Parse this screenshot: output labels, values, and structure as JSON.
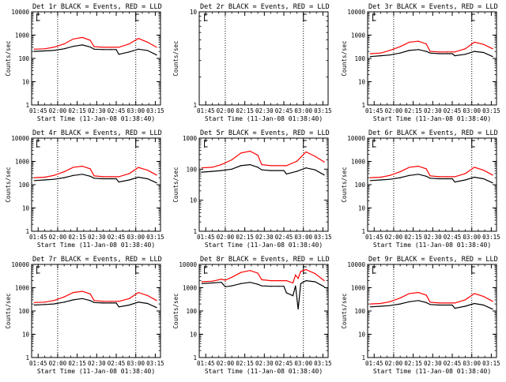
{
  "chart_data": [
    {
      "type": "line",
      "title": "Det 1r BLACK = Events, RED = LLD",
      "xlabel": "Start Time (11-Jan-08 01:38:40)",
      "ylabel": "Counts/sec",
      "ylog": true,
      "ylim": [
        1,
        10000
      ],
      "x": [
        "01:42",
        "01:50",
        "01:57",
        "02:05",
        "02:12",
        "02:19",
        "02:25",
        "02:28",
        "02:35",
        "02:41",
        "02:45",
        "02:47",
        "02:55",
        "03:02",
        "03:09",
        "03:16"
      ],
      "series": [
        {
          "color": "#000000",
          "values": [
            200,
            210,
            220,
            260,
            330,
            380,
            310,
            250,
            240,
            240,
            240,
            150,
            190,
            250,
            220,
            140
          ]
        },
        {
          "color": "#ff0000",
          "values": [
            250,
            260,
            300,
            420,
            680,
            800,
            600,
            320,
            300,
            300,
            300,
            300,
            420,
            720,
            500,
            300
          ]
        }
      ],
      "xticks": [
        "01:45",
        "02:00",
        "02:15",
        "02:30",
        "02:45",
        "03:00",
        "03:15"
      ],
      "yticks": [
        "1",
        "10",
        "100",
        "1000",
        "10000"
      ],
      "markers": [
        "02:00",
        "03:00"
      ],
      "flags": [
        "01:44",
        "03:00"
      ]
    },
    {
      "type": "line",
      "title": "Det 2r BLACK = Events, RED = LLD",
      "xlabel": "Start Time (11-Jan-08 01:38:40)",
      "ylabel": "Counts/sec",
      "ylog": true,
      "ylim": [
        1,
        10
      ],
      "x": [],
      "series": [],
      "xticks": [
        "01:45",
        "02:00",
        "02:15",
        "02:30",
        "02:45",
        "03:00",
        "03:15"
      ],
      "yticks": [
        "1",
        "10"
      ],
      "markers": [
        "02:00",
        "03:00"
      ],
      "flags": [
        "01:44",
        "03:00"
      ]
    },
    {
      "type": "line",
      "title": "Det 3r BLACK = Events, RED = LLD",
      "xlabel": "Start Time (11-Jan-08 01:38:40)",
      "ylabel": "Counts/sec",
      "ylog": true,
      "ylim": [
        1,
        10000
      ],
      "x": [
        "01:42",
        "01:50",
        "01:57",
        "02:05",
        "02:12",
        "02:19",
        "02:25",
        "02:28",
        "02:35",
        "02:41",
        "02:45",
        "02:47",
        "02:55",
        "03:02",
        "03:09",
        "03:16"
      ],
      "series": [
        {
          "color": "#000000",
          "values": [
            120,
            130,
            140,
            170,
            220,
            240,
            200,
            170,
            160,
            160,
            160,
            130,
            150,
            200,
            180,
            120
          ]
        },
        {
          "color": "#ff0000",
          "values": [
            160,
            170,
            220,
            320,
            500,
            550,
            420,
            200,
            190,
            190,
            190,
            190,
            260,
            500,
            400,
            260
          ]
        }
      ],
      "xticks": [
        "01:45",
        "02:00",
        "02:15",
        "02:30",
        "02:45",
        "03:00",
        "03:15"
      ],
      "yticks": [
        "1",
        "10",
        "100",
        "1000",
        "10000"
      ],
      "markers": [
        "02:00",
        "03:00"
      ],
      "flags": [
        "01:44",
        "03:00"
      ]
    },
    {
      "type": "line",
      "title": "Det 4r BLACK = Events, RED = LLD",
      "xlabel": "Start Time (11-Jan-08 01:38:40)",
      "ylabel": "Counts/sec",
      "ylog": true,
      "ylim": [
        1,
        10000
      ],
      "x": [
        "01:42",
        "01:50",
        "01:57",
        "02:05",
        "02:12",
        "02:19",
        "02:25",
        "02:28",
        "02:35",
        "02:41",
        "02:45",
        "02:47",
        "02:55",
        "03:02",
        "03:09",
        "03:16"
      ],
      "series": [
        {
          "color": "#000000",
          "values": [
            150,
            160,
            170,
            200,
            250,
            280,
            230,
            190,
            180,
            180,
            180,
            130,
            160,
            210,
            180,
            120
          ]
        },
        {
          "color": "#ff0000",
          "values": [
            200,
            210,
            250,
            360,
            560,
            620,
            480,
            240,
            220,
            220,
            220,
            220,
            300,
            550,
            420,
            260
          ]
        }
      ],
      "xticks": [
        "01:45",
        "02:00",
        "02:15",
        "02:30",
        "02:45",
        "03:00",
        "03:15"
      ],
      "yticks": [
        "1",
        "10",
        "100",
        "1000",
        "10000"
      ],
      "markers": [
        "02:00",
        "03:00"
      ],
      "flags": [
        "01:44",
        "03:00"
      ]
    },
    {
      "type": "line",
      "title": "Det 5r BLACK = Events, RED = LLD",
      "xlabel": "Start Time (11-Jan-08 01:38:40)",
      "ylabel": "Counts/sec",
      "ylog": true,
      "ylim": [
        1,
        1000
      ],
      "x": [
        "01:42",
        "01:50",
        "01:57",
        "02:05",
        "02:12",
        "02:19",
        "02:25",
        "02:28",
        "02:35",
        "02:41",
        "02:45",
        "02:47",
        "02:55",
        "03:02",
        "03:09",
        "03:16"
      ],
      "series": [
        {
          "color": "#000000",
          "values": [
            80,
            85,
            90,
            100,
            130,
            140,
            115,
            95,
            90,
            90,
            90,
            70,
            85,
            110,
            95,
            65
          ]
        },
        {
          "color": "#ff0000",
          "values": [
            110,
            115,
            140,
            200,
            330,
            380,
            280,
            140,
            130,
            130,
            130,
            130,
            180,
            360,
            260,
            170
          ]
        }
      ],
      "xticks": [
        "01:45",
        "02:00",
        "02:15",
        "02:30",
        "02:45",
        "03:00",
        "03:15"
      ],
      "yticks": [
        "1",
        "10",
        "100",
        "1000"
      ],
      "markers": [
        "02:00",
        "03:00"
      ],
      "flags": [
        "01:44",
        "03:00"
      ]
    },
    {
      "type": "line",
      "title": "Det 6r BLACK = Events, RED = LLD",
      "xlabel": "Start Time (11-Jan-08 01:38:40)",
      "ylabel": "Counts/sec",
      "ylog": true,
      "ylim": [
        1,
        10000
      ],
      "x": [
        "01:42",
        "01:50",
        "01:57",
        "02:05",
        "02:12",
        "02:19",
        "02:25",
        "02:28",
        "02:35",
        "02:41",
        "02:45",
        "02:47",
        "02:55",
        "03:02",
        "03:09",
        "03:16"
      ],
      "series": [
        {
          "color": "#000000",
          "values": [
            150,
            160,
            170,
            200,
            250,
            280,
            230,
            190,
            180,
            180,
            180,
            130,
            160,
            210,
            180,
            120
          ]
        },
        {
          "color": "#ff0000",
          "values": [
            200,
            210,
            250,
            360,
            560,
            620,
            480,
            240,
            220,
            220,
            220,
            220,
            300,
            560,
            420,
            260
          ]
        }
      ],
      "xticks": [
        "01:45",
        "02:00",
        "02:15",
        "02:30",
        "02:45",
        "03:00",
        "03:15"
      ],
      "yticks": [
        "1",
        "10",
        "100",
        "1000",
        "10000"
      ],
      "markers": [
        "02:00",
        "03:00"
      ],
      "flags": [
        "01:44",
        "03:00"
      ]
    },
    {
      "type": "line",
      "title": "Det 7r BLACK = Events, RED = LLD",
      "xlabel": "Start Time (11-Jan-08 01:38:40)",
      "ylabel": "Counts/sec",
      "ylog": true,
      "ylim": [
        1,
        10000
      ],
      "x": [
        "01:42",
        "01:50",
        "01:57",
        "02:05",
        "02:12",
        "02:19",
        "02:25",
        "02:28",
        "02:35",
        "02:41",
        "02:45",
        "02:47",
        "02:55",
        "03:02",
        "03:09",
        "03:16"
      ],
      "series": [
        {
          "color": "#000000",
          "values": [
            180,
            190,
            200,
            240,
            300,
            340,
            280,
            230,
            220,
            220,
            220,
            150,
            180,
            240,
            210,
            140
          ]
        },
        {
          "color": "#ff0000",
          "values": [
            230,
            240,
            280,
            400,
            620,
            700,
            540,
            280,
            260,
            260,
            260,
            260,
            340,
            620,
            460,
            280
          ]
        }
      ],
      "xticks": [
        "01:45",
        "02:00",
        "02:15",
        "02:30",
        "02:45",
        "03:00",
        "03:15"
      ],
      "yticks": [
        "1",
        "10",
        "100",
        "1000",
        "10000"
      ],
      "markers": [
        "02:00",
        "03:00"
      ],
      "flags": [
        "01:44",
        "03:00"
      ]
    },
    {
      "type": "line",
      "title": "Det 8r BLACK = Events, RED = LLD",
      "xlabel": "Start Time (11-Jan-08 01:38:40)",
      "ylabel": "Counts/sec",
      "ylog": true,
      "ylim": [
        1,
        10000
      ],
      "x": [
        "01:42",
        "01:50",
        "01:57",
        "02:00",
        "02:05",
        "02:12",
        "02:19",
        "02:25",
        "02:28",
        "02:35",
        "02:41",
        "02:45",
        "02:47",
        "02:52",
        "02:54",
        "02:56",
        "02:58",
        "03:02",
        "03:09",
        "03:16"
      ],
      "series": [
        {
          "color": "#000000",
          "values": [
            1500,
            1600,
            1700,
            1100,
            1200,
            1500,
            1700,
            1400,
            1200,
            1150,
            1150,
            1150,
            600,
            450,
            1200,
            120,
            1500,
            2000,
            1800,
            1100
          ]
        },
        {
          "color": "#ff0000",
          "values": [
            1800,
            1900,
            2300,
            2100,
            2800,
            4500,
            5500,
            4200,
            2200,
            2000,
            2000,
            2000,
            2000,
            1600,
            3500,
            2500,
            5000,
            6000,
            4000,
            2000
          ]
        }
      ],
      "xticks": [
        "01:45",
        "02:00",
        "02:15",
        "02:30",
        "02:45",
        "03:00",
        "03:15"
      ],
      "yticks": [
        "1",
        "10",
        "100",
        "1000",
        "10000"
      ],
      "markers": [
        "02:00",
        "03:00"
      ],
      "flags": [
        "01:44",
        "03:00"
      ]
    },
    {
      "type": "line",
      "title": "Det 9r BLACK = Events, RED = LLD",
      "xlabel": "Start Time (11-Jan-08 01:38:40)",
      "ylabel": "Counts/sec",
      "ylog": true,
      "ylim": [
        1,
        10000
      ],
      "x": [
        "01:42",
        "01:50",
        "01:57",
        "02:05",
        "02:12",
        "02:19",
        "02:25",
        "02:28",
        "02:35",
        "02:41",
        "02:45",
        "02:47",
        "02:55",
        "03:02",
        "03:09",
        "03:16"
      ],
      "series": [
        {
          "color": "#000000",
          "values": [
            150,
            160,
            170,
            200,
            250,
            280,
            230,
            190,
            180,
            180,
            180,
            130,
            160,
            210,
            180,
            120
          ]
        },
        {
          "color": "#ff0000",
          "values": [
            200,
            210,
            250,
            360,
            560,
            620,
            480,
            240,
            220,
            220,
            220,
            220,
            300,
            560,
            420,
            260
          ]
        }
      ],
      "xticks": [
        "01:45",
        "02:00",
        "02:15",
        "02:30",
        "02:45",
        "03:00",
        "03:15"
      ],
      "yticks": [
        "1",
        "10",
        "100",
        "1000",
        "10000"
      ],
      "markers": [
        "02:00",
        "03:00"
      ],
      "flags": [
        "01:44",
        "03:00"
      ]
    }
  ]
}
